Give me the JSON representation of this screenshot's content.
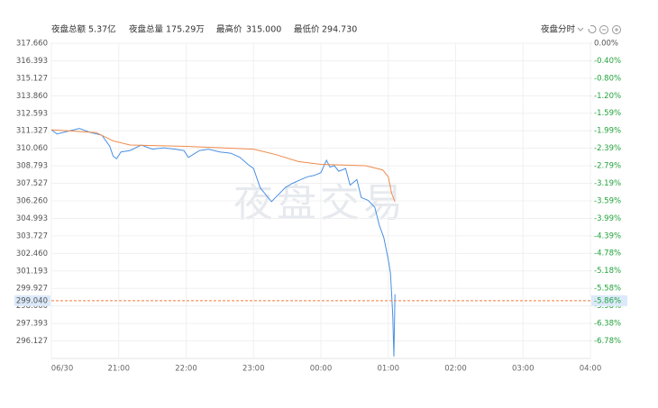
{
  "header": {
    "stats": [
      {
        "label": "夜盘总额",
        "value": "5.37亿"
      },
      {
        "label": "夜盘总量",
        "value": "175.29万"
      },
      {
        "label": "最高价",
        "value": "315.000"
      },
      {
        "label": "最低价",
        "value": "294.730"
      }
    ],
    "mode": "夜盘分时"
  },
  "chart_data": {
    "type": "line",
    "watermark": "夜盘交易",
    "grid": true,
    "xlim": [
      0,
      480
    ],
    "xticks": [
      {
        "value": 0,
        "label": "06/30"
      },
      {
        "value": 60,
        "label": "21:00"
      },
      {
        "value": 120,
        "label": "22:00"
      },
      {
        "value": 180,
        "label": "23:00"
      },
      {
        "value": 240,
        "label": "00:00"
      },
      {
        "value": 300,
        "label": "01:00"
      },
      {
        "value": 360,
        "label": "02:00"
      },
      {
        "value": 420,
        "label": "03:00"
      },
      {
        "value": 480,
        "label": "04:00"
      }
    ],
    "ylim": [
      294.86,
      317.66
    ],
    "yticks": [
      {
        "value": 317.66,
        "label": "317.660"
      },
      {
        "value": 316.393,
        "label": "316.393"
      },
      {
        "value": 315.127,
        "label": "315.127"
      },
      {
        "value": 313.86,
        "label": "313.860"
      },
      {
        "value": 312.593,
        "label": "312.593"
      },
      {
        "value": 311.327,
        "label": "311.327"
      },
      {
        "value": 310.06,
        "label": "310.060"
      },
      {
        "value": 308.793,
        "label": "308.793"
      },
      {
        "value": 307.527,
        "label": "307.527"
      },
      {
        "value": 306.26,
        "label": "306.260"
      },
      {
        "value": 304.993,
        "label": "304.993"
      },
      {
        "value": 303.727,
        "label": "303.727"
      },
      {
        "value": 302.46,
        "label": "302.460"
      },
      {
        "value": 301.193,
        "label": "301.193"
      },
      {
        "value": 299.927,
        "label": "299.927"
      },
      {
        "value": 298.66,
        "label": "298.660"
      },
      {
        "value": 297.393,
        "label": "297.393"
      },
      {
        "value": 296.127,
        "label": "296.127"
      }
    ],
    "y2lim": [
      -7.18,
      0
    ],
    "y2ticks": [
      {
        "value": 0,
        "label": "0.00%"
      },
      {
        "value": -0.4,
        "label": "-0.40%"
      },
      {
        "value": -0.8,
        "label": "-0.80%"
      },
      {
        "value": -1.2,
        "label": "-1.20%"
      },
      {
        "value": -1.59,
        "label": "-1.59%"
      },
      {
        "value": -1.99,
        "label": "-1.99%"
      },
      {
        "value": -2.39,
        "label": "-2.39%"
      },
      {
        "value": -2.79,
        "label": "-2.79%"
      },
      {
        "value": -3.19,
        "label": "-3.19%"
      },
      {
        "value": -3.59,
        "label": "-3.59%"
      },
      {
        "value": -3.99,
        "label": "-3.99%"
      },
      {
        "value": -4.39,
        "label": "-4.39%"
      },
      {
        "value": -4.78,
        "label": "-4.78%"
      },
      {
        "value": -5.18,
        "label": "-5.18%"
      },
      {
        "value": -5.58,
        "label": "-5.58%"
      },
      {
        "value": -5.98,
        "label": "-5.98%"
      },
      {
        "value": -6.38,
        "label": "-6.38%"
      },
      {
        "value": -6.78,
        "label": "-6.78%"
      }
    ],
    "series": [
      {
        "color": "#4a90e2",
        "x": [
          0,
          5,
          15,
          25,
          35,
          45,
          52,
          55,
          58,
          62,
          70,
          80,
          90,
          100,
          110,
          118,
          122,
          126,
          132,
          140,
          150,
          160,
          168,
          175,
          180,
          186,
          190,
          196,
          202,
          208,
          214,
          222,
          228,
          234,
          240,
          245,
          248,
          252,
          256,
          262,
          266,
          272,
          276,
          282,
          288,
          292,
          296,
          300,
          302,
          303,
          304,
          305,
          306
        ],
        "values": [
          311.4,
          311.1,
          311.3,
          311.5,
          311.2,
          311.0,
          310.2,
          309.5,
          309.3,
          309.8,
          309.9,
          310.3,
          310.0,
          310.1,
          310.0,
          309.9,
          309.4,
          309.6,
          309.9,
          310.0,
          309.8,
          309.7,
          309.4,
          308.9,
          308.6,
          307.2,
          306.8,
          306.2,
          306.7,
          307.2,
          307.5,
          307.8,
          308.0,
          308.1,
          308.3,
          309.2,
          308.7,
          308.8,
          308.4,
          308.6,
          307.4,
          307.8,
          306.5,
          306.3,
          305.8,
          304.5,
          303.6,
          302.0,
          301.0,
          299.5,
          298.0,
          295.0,
          299.5
        ]
      },
      {
        "color": "#f08a4b",
        "x": [
          0,
          20,
          40,
          55,
          70,
          120,
          180,
          200,
          220,
          240,
          280,
          295,
          300,
          303,
          306
        ],
        "values": [
          311.4,
          311.3,
          311.2,
          310.6,
          310.3,
          310.2,
          310.0,
          309.6,
          309.1,
          308.9,
          308.8,
          308.5,
          308.0,
          306.8,
          306.2
        ]
      }
    ],
    "current": {
      "value": 299.04,
      "label": "299.040",
      "pct": {
        "value": -5.86,
        "label": "-5.86%"
      }
    }
  }
}
